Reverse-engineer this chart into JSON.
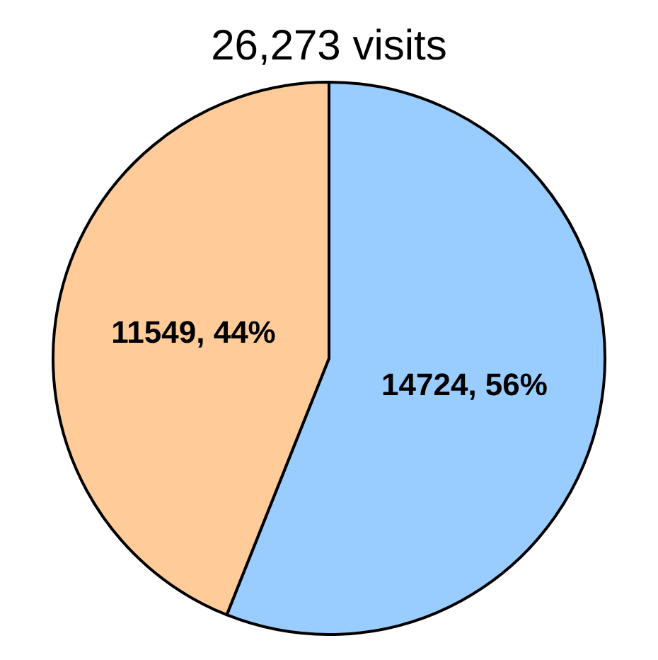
{
  "chart_data": {
    "type": "pie",
    "title": "26,273 visits",
    "categories": [
      null,
      null
    ],
    "values": [
      14724,
      11549
    ],
    "colors": [
      "#99ccff",
      "#ffcc99"
    ],
    "value_labels": [
      "14724, 56%",
      "11549, 44%"
    ]
  }
}
